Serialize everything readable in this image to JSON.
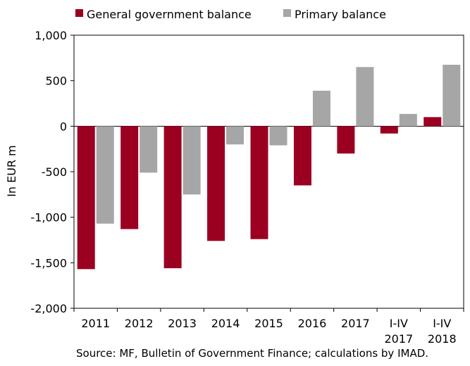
{
  "chart_data": {
    "type": "bar",
    "ylabel": "In EUR m",
    "ylim": [
      -2000,
      1000
    ],
    "yticks": [
      1000,
      500,
      0,
      -500,
      -1000,
      -1500,
      -2000
    ],
    "ytick_labels": [
      "1,000",
      "500",
      "0",
      "-500",
      "-1,000",
      "-1,500",
      "-2,000"
    ],
    "categories": [
      "2011",
      "2012",
      "2013",
      "2014",
      "2015",
      "2016",
      "2017",
      "I-IV 2017",
      "I-IV 2018"
    ],
    "category_lines": [
      [
        "2011"
      ],
      [
        "2012"
      ],
      [
        "2013"
      ],
      [
        "2014"
      ],
      [
        "2015"
      ],
      [
        "2016"
      ],
      [
        "2017"
      ],
      [
        "I-IV",
        "2017"
      ],
      [
        "I-IV",
        "2018"
      ]
    ],
    "series": [
      {
        "name": "General government balance",
        "color": "#9b0020",
        "values": [
          -1570,
          -1130,
          -1560,
          -1260,
          -1240,
          -650,
          -300,
          -80,
          100
        ]
      },
      {
        "name": "Primary balance",
        "color": "#a6a6a6",
        "values": [
          -1070,
          -510,
          -750,
          -200,
          -210,
          390,
          650,
          135,
          675
        ]
      }
    ],
    "legend_position": "top-left",
    "grid": false
  },
  "source": "Source: MF, Bulletin of Government Finance; calculations by IMAD."
}
